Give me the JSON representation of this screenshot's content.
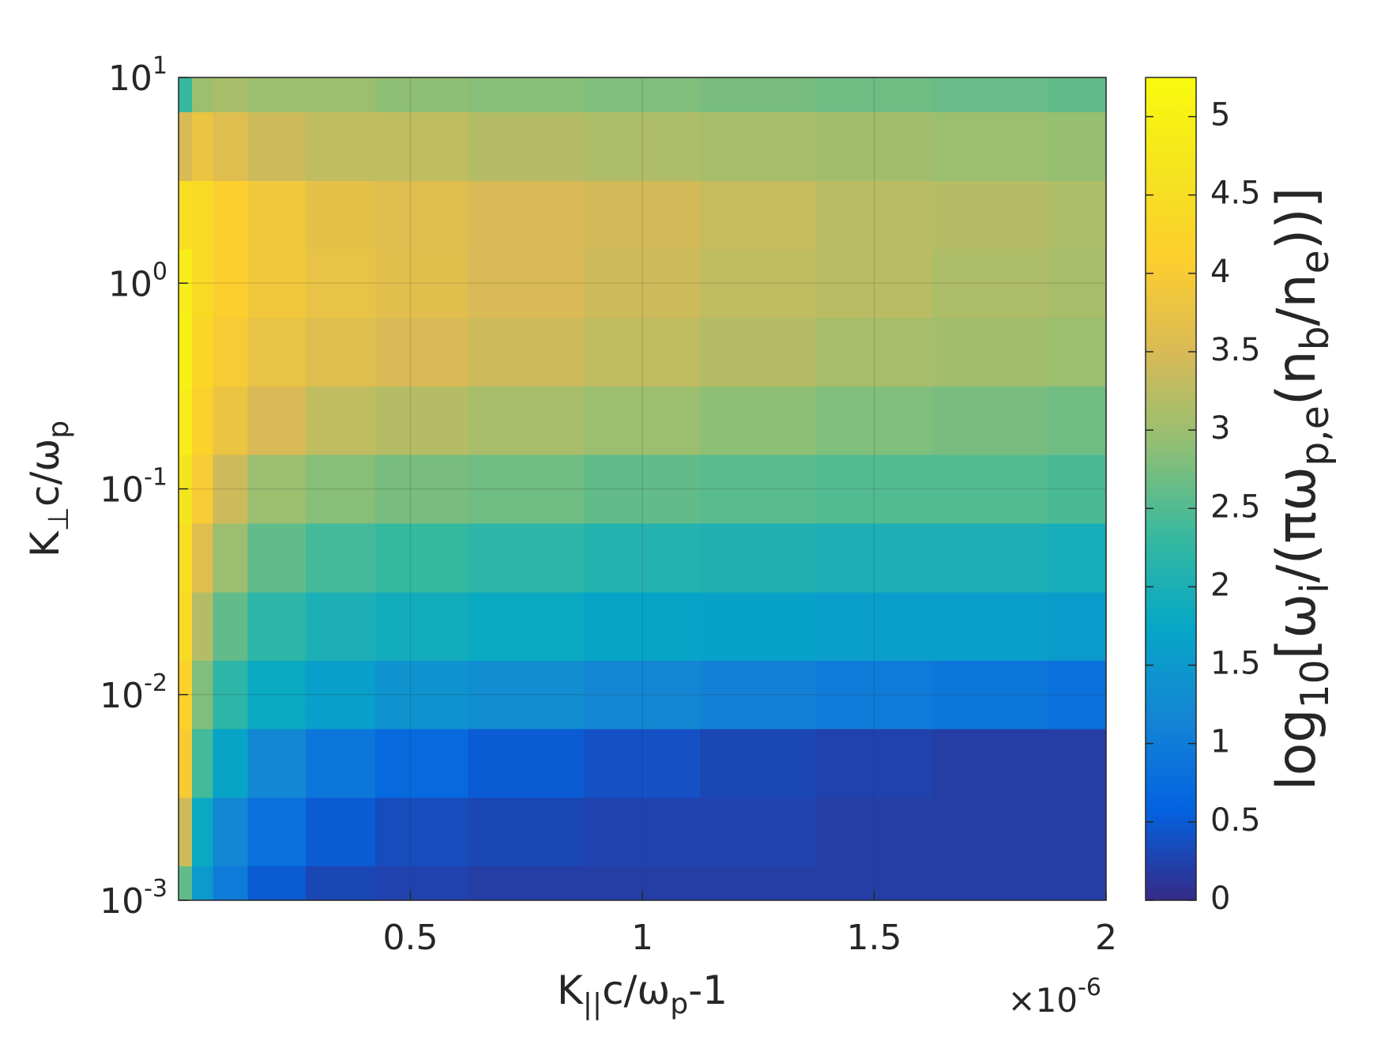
{
  "chart_data": {
    "type": "heatmap",
    "colormap": "parula",
    "x_label_parts": [
      {
        "text": "K"
      },
      {
        "text": "||",
        "shift": "sub"
      },
      {
        "text": "c/ω"
      },
      {
        "text": "p",
        "shift": "sub"
      },
      {
        "text": "-1"
      }
    ],
    "y_label_parts": [
      {
        "text": "K"
      },
      {
        "text": "⊥",
        "shift": "sub"
      },
      {
        "text": "c/ω"
      },
      {
        "text": "p",
        "shift": "sub"
      }
    ],
    "colorbar_label_parts": [
      {
        "text": "log"
      },
      {
        "text": "10",
        "shift": "sub"
      },
      {
        "text": "[ω"
      },
      {
        "text": "i",
        "shift": "sub"
      },
      {
        "text": "/(πω"
      },
      {
        "text": "p,e",
        "shift": "sub"
      },
      {
        "text": "(n"
      },
      {
        "text": "b",
        "shift": "sub"
      },
      {
        "text": "/n"
      },
      {
        "text": "e",
        "shift": "sub"
      },
      {
        "text": "))]"
      }
    ],
    "x_multiplier": {
      "base": "×10",
      "exponent": "-6"
    },
    "x": [
      0.01,
      0.05,
      0.1,
      0.2,
      0.35,
      0.5,
      0.75,
      1,
      1.25,
      1.5,
      1.75,
      2
    ],
    "y": [
      0.001,
      0.00215,
      0.00464,
      0.01,
      0.0215,
      0.0464,
      0.1,
      0.215,
      0.464,
      1,
      2.15,
      4.64,
      10
    ],
    "z": [
      [
        2.6,
        1.5,
        1.0,
        0.5,
        0.3,
        0.25,
        0.2,
        0.2,
        0.2,
        0.2,
        0.2,
        0.2
      ],
      [
        3.4,
        1.8,
        1.2,
        0.8,
        0.5,
        0.35,
        0.3,
        0.25,
        0.25,
        0.2,
        0.2,
        0.2
      ],
      [
        4.0,
        2.4,
        1.7,
        1.2,
        0.9,
        0.7,
        0.5,
        0.4,
        0.3,
        0.25,
        0.2,
        0.2
      ],
      [
        4.2,
        2.8,
        2.2,
        1.8,
        1.6,
        1.4,
        1.3,
        1.2,
        1.1,
        1.0,
        0.9,
        0.8
      ],
      [
        4.4,
        3.2,
        2.6,
        2.2,
        2.0,
        1.9,
        1.8,
        1.7,
        1.65,
        1.6,
        1.6,
        1.55
      ],
      [
        4.5,
        3.6,
        3.0,
        2.6,
        2.4,
        2.3,
        2.2,
        2.1,
        2.05,
        2.0,
        2.0,
        1.95
      ],
      [
        4.7,
        4.0,
        3.4,
        3.0,
        2.85,
        2.75,
        2.7,
        2.6,
        2.55,
        2.5,
        2.5,
        2.45
      ],
      [
        4.9,
        4.2,
        3.8,
        3.5,
        3.3,
        3.2,
        3.1,
        3.0,
        2.9,
        2.8,
        2.75,
        2.7
      ],
      [
        5.0,
        4.3,
        4.0,
        3.75,
        3.6,
        3.5,
        3.4,
        3.3,
        3.2,
        3.1,
        3.05,
        3.0
      ],
      [
        4.9,
        4.4,
        4.1,
        3.9,
        3.75,
        3.65,
        3.5,
        3.4,
        3.3,
        3.25,
        3.15,
        3.1
      ],
      [
        4.5,
        4.4,
        4.1,
        3.9,
        3.7,
        3.6,
        3.5,
        3.45,
        3.35,
        3.25,
        3.2,
        3.15
      ],
      [
        3.5,
        3.8,
        3.6,
        3.4,
        3.3,
        3.3,
        3.2,
        3.15,
        3.1,
        3.05,
        3.0,
        2.95
      ],
      [
        2.3,
        3.0,
        3.1,
        3.0,
        3.0,
        2.9,
        2.85,
        2.8,
        2.75,
        2.7,
        2.65,
        2.6
      ]
    ],
    "xlim": [
      0,
      2
    ],
    "xticks": [
      0.5,
      1,
      1.5,
      2
    ],
    "ylim": [
      0.001,
      10
    ],
    "yscale": "log",
    "yticks": [
      {
        "value": 0.001,
        "label": "10",
        "exponent": "-3"
      },
      {
        "value": 0.01,
        "label": "10",
        "exponent": "-2"
      },
      {
        "value": 0.1,
        "label": "10",
        "exponent": "-1"
      },
      {
        "value": 1,
        "label": "10",
        "exponent": "0"
      },
      {
        "value": 10,
        "label": "10",
        "exponent": "1"
      }
    ],
    "clim": [
      0,
      5.25
    ],
    "cticks": [
      0,
      0.5,
      1,
      1.5,
      2,
      2.5,
      3,
      3.5,
      4,
      4.5,
      5
    ],
    "grid": true
  }
}
